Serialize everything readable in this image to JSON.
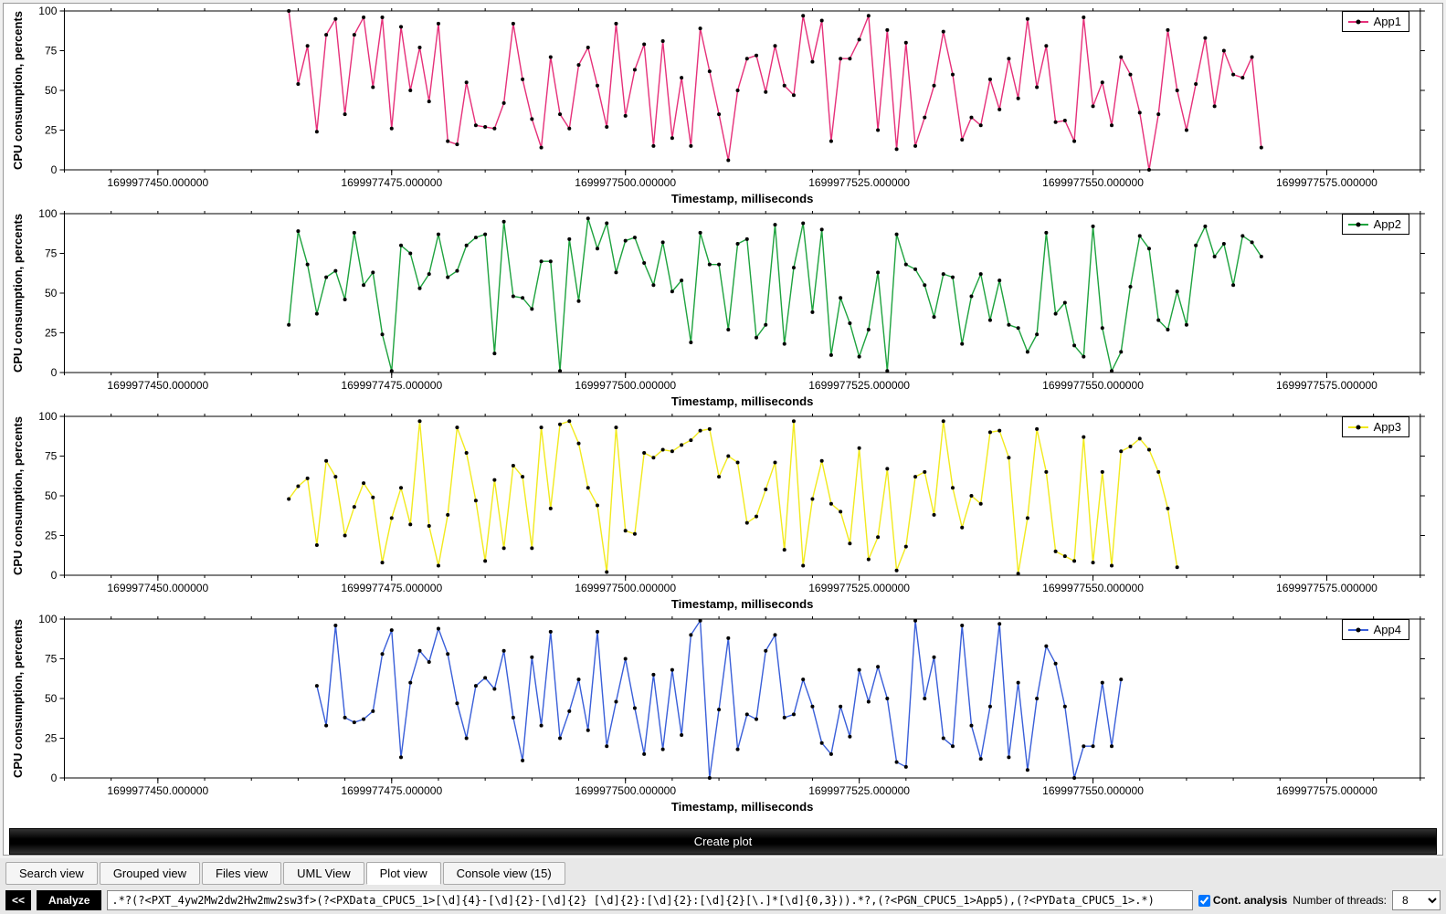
{
  "create_plot_label": "Create plot",
  "tabs": [
    {
      "label": "Search view",
      "active": false
    },
    {
      "label": "Grouped view",
      "active": false
    },
    {
      "label": "Files view",
      "active": false
    },
    {
      "label": "UML View",
      "active": false
    },
    {
      "label": "Plot view",
      "active": true
    },
    {
      "label": "Console view (15)",
      "active": false
    }
  ],
  "bottom": {
    "collapse": "<<",
    "analyze": "Analyze",
    "regex": ".*?(?<PXT_4yw2Mw2dw2Hw2mw2sw3f>(?<PXData_CPUC5_1>[\\d]{4}-[\\d]{2}-[\\d]{2} [\\d]{2}:[\\d]{2}:[\\d]{2}[\\.]*[\\d]{0,3})).*?,(?<PGN_CPUC5_1>App5),(?<PYData_CPUC5_1>.*)",
    "cont_analysis_label": "Cont. analysis",
    "cont_analysis_checked": true,
    "threads_label": "Number of threads:",
    "threads_value": "8"
  },
  "plot_common": {
    "ylabel": "CPU consumption, percents",
    "xlabel": "Timestamp, milliseconds",
    "ylim": [
      0,
      100
    ],
    "ytick_step": 25,
    "xlim": [
      1699977440,
      1699977585
    ],
    "xticks": [
      {
        "v": 1699977450,
        "label": "1699977450.000000"
      },
      {
        "v": 1699977475,
        "label": "1699977475.000000"
      },
      {
        "v": 1699977500,
        "label": "1699977500.000000"
      },
      {
        "v": 1699977525,
        "label": "1699977525.000000"
      },
      {
        "v": 1699977550,
        "label": "1699977550.000000"
      },
      {
        "v": 1699977575,
        "label": "1699977575.000000"
      }
    ],
    "yticks": [
      0,
      25,
      50,
      75,
      100
    ],
    "background": "#ffffff",
    "border_color": "#000000",
    "marker_color": "#000000",
    "marker_size": 4,
    "label_fontsize": 13,
    "tick_fontsize": 12
  },
  "charts": [
    {
      "legend": "App1",
      "line_color": "#e6317a",
      "x_start": 1699977464,
      "x_step": 1,
      "values": [
        100,
        54,
        78,
        24,
        85,
        95,
        35,
        85,
        96,
        52,
        96,
        26,
        90,
        50,
        77,
        43,
        92,
        18,
        16,
        55,
        28,
        27,
        26,
        42,
        92,
        57,
        32,
        14,
        71,
        35,
        26,
        66,
        77,
        53,
        27,
        92,
        34,
        63,
        79,
        15,
        81,
        20,
        58,
        15,
        89,
        62,
        35,
        6,
        50,
        70,
        72,
        49,
        78,
        53,
        47,
        97,
        68,
        94,
        18,
        70,
        70,
        82,
        97,
        25,
        88,
        13,
        80,
        15,
        33,
        53,
        87,
        60,
        19,
        33,
        28,
        57,
        38,
        70,
        45,
        95,
        52,
        78,
        30,
        31,
        18,
        96,
        40,
        55,
        28,
        71,
        60,
        36,
        0,
        35,
        88,
        50,
        25,
        54,
        83,
        40,
        75,
        60,
        58,
        71,
        14
      ]
    },
    {
      "legend": "App2",
      "line_color": "#1fa33f",
      "x_start": 1699977464,
      "x_step": 1,
      "values": [
        30,
        89,
        68,
        37,
        60,
        64,
        46,
        88,
        55,
        63,
        24,
        1,
        80,
        75,
        53,
        62,
        87,
        60,
        64,
        80,
        85,
        87,
        12,
        95,
        48,
        47,
        40,
        70,
        70,
        1,
        84,
        45,
        97,
        78,
        94,
        63,
        83,
        85,
        69,
        55,
        82,
        51,
        58,
        19,
        88,
        68,
        68,
        27,
        81,
        84,
        22,
        30,
        93,
        18,
        66,
        94,
        38,
        90,
        11,
        47,
        31,
        10,
        27,
        63,
        1,
        87,
        68,
        65,
        55,
        35,
        62,
        60,
        18,
        48,
        62,
        33,
        58,
        30,
        28,
        13,
        24,
        88,
        37,
        44,
        17,
        10,
        92,
        28,
        1,
        13,
        54,
        86,
        78,
        33,
        27,
        51,
        30,
        80,
        92,
        73,
        81,
        55,
        86,
        82,
        73
      ]
    },
    {
      "legend": "App3",
      "line_color": "#f2ea1f",
      "x_start": 1699977464,
      "x_step": 1,
      "values": [
        48,
        56,
        61,
        19,
        72,
        62,
        25,
        43,
        58,
        49,
        8,
        36,
        55,
        32,
        97,
        31,
        6,
        38,
        93,
        77,
        47,
        9,
        60,
        17,
        69,
        62,
        17,
        93,
        42,
        95,
        97,
        83,
        55,
        44,
        2,
        93,
        28,
        26,
        77,
        74,
        79,
        78,
        82,
        85,
        91,
        92,
        62,
        75,
        71,
        33,
        37,
        54,
        71,
        16,
        97,
        6,
        48,
        72,
        45,
        40,
        20,
        80,
        10,
        24,
        67,
        3,
        18,
        62,
        65,
        38,
        97,
        55,
        30,
        50,
        45,
        90,
        91,
        74,
        1,
        36,
        92,
        65,
        15,
        12,
        9,
        87,
        8,
        65,
        6,
        78,
        81,
        86,
        79,
        65,
        42,
        5
      ]
    },
    {
      "legend": "App4",
      "line_color": "#3a5fd9",
      "x_start": 1699977467,
      "x_step": 1,
      "values": [
        58,
        33,
        96,
        38,
        35,
        37,
        42,
        78,
        93,
        13,
        60,
        80,
        73,
        94,
        78,
        47,
        25,
        58,
        63,
        56,
        80,
        38,
        11,
        76,
        33,
        92,
        25,
        42,
        62,
        30,
        92,
        20,
        48,
        75,
        44,
        15,
        65,
        18,
        68,
        27,
        90,
        99,
        0,
        43,
        88,
        18,
        40,
        37,
        80,
        90,
        38,
        40,
        62,
        45,
        22,
        15,
        45,
        26,
        68,
        48,
        70,
        50,
        10,
        7,
        99,
        50,
        76,
        25,
        20,
        96,
        33,
        12,
        45,
        97,
        13,
        60,
        5,
        50,
        83,
        72,
        45,
        0,
        20,
        20,
        60,
        20,
        62
      ]
    }
  ]
}
